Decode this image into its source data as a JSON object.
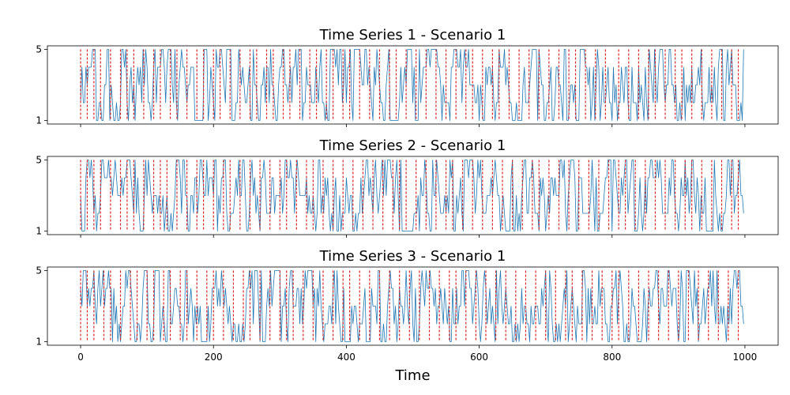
{
  "chart_data": [
    {
      "type": "line",
      "title": "Time Series 1 - Scenario 1",
      "xlim": [
        -50,
        1050
      ],
      "ylim": [
        0.8,
        5.2
      ],
      "yticks": [
        1,
        5
      ],
      "xticks": [],
      "grid": false,
      "series_color": "#1f77b4",
      "changepoint_color": "#d62728",
      "changepoints": [
        0,
        10,
        20,
        30,
        45,
        60,
        70,
        80,
        95,
        110,
        120,
        135,
        145,
        160,
        175,
        185,
        200,
        210,
        225,
        240,
        255,
        265,
        280,
        290,
        305,
        315,
        330,
        345,
        355,
        370,
        380,
        395,
        405,
        420,
        435,
        450,
        465,
        475,
        490,
        505,
        520,
        535,
        550,
        565,
        580,
        590,
        605,
        620,
        630,
        645,
        660,
        675,
        690,
        705,
        720,
        735,
        745,
        760,
        775,
        790,
        810,
        825,
        840,
        855,
        865,
        880,
        895,
        905,
        920,
        935,
        950,
        965,
        980,
        990
      ]
    },
    {
      "type": "line",
      "title": "Time Series 2 - Scenario 1",
      "xlim": [
        -50,
        1050
      ],
      "ylim": [
        0.8,
        5.2
      ],
      "yticks": [
        1,
        5
      ],
      "xticks": [],
      "grid": false,
      "series_color": "#1f77b4",
      "changepoint_color": "#d62728",
      "changepoints": [
        0,
        10,
        20,
        30,
        45,
        60,
        70,
        80,
        95,
        110,
        120,
        130,
        145,
        160,
        175,
        185,
        200,
        215,
        225,
        240,
        255,
        270,
        285,
        300,
        310,
        325,
        340,
        350,
        365,
        380,
        395,
        410,
        425,
        440,
        455,
        470,
        480,
        490,
        505,
        520,
        535,
        550,
        560,
        575,
        590,
        605,
        620,
        635,
        650,
        665,
        680,
        690,
        705,
        720,
        735,
        750,
        765,
        780,
        795,
        810,
        820,
        835,
        850,
        865,
        880,
        895,
        910,
        920,
        935,
        950,
        965,
        980,
        990
      ]
    },
    {
      "type": "line",
      "title": "Time Series 3 - Scenario 1",
      "xlim": [
        -50,
        1050
      ],
      "ylim": [
        0.8,
        5.2
      ],
      "yticks": [
        1,
        5
      ],
      "xticks": [
        0,
        200,
        400,
        600,
        800,
        1000
      ],
      "xlabel": "Time",
      "grid": false,
      "series_color": "#1f77b4",
      "changepoint_color": "#d62728",
      "changepoints": [
        0,
        10,
        20,
        35,
        45,
        60,
        75,
        85,
        100,
        110,
        125,
        135,
        150,
        160,
        175,
        190,
        200,
        215,
        230,
        245,
        255,
        270,
        285,
        300,
        310,
        320,
        335,
        350,
        365,
        380,
        395,
        405,
        420,
        435,
        450,
        465,
        480,
        495,
        510,
        525,
        540,
        555,
        565,
        580,
        595,
        610,
        625,
        640,
        655,
        670,
        685,
        700,
        715,
        730,
        740,
        755,
        770,
        785,
        800,
        810,
        825,
        840,
        855,
        870,
        885,
        900,
        915,
        930,
        945,
        960,
        975,
        990
      ]
    }
  ]
}
